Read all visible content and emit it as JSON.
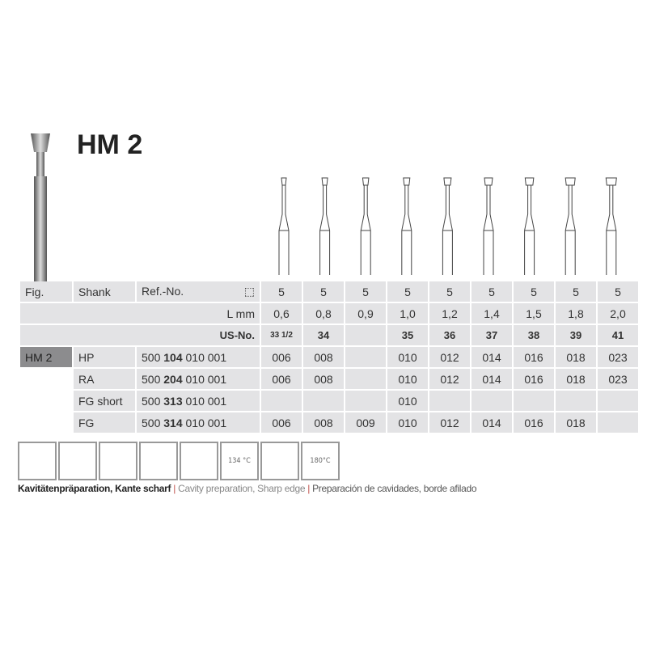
{
  "title": "HM 2",
  "table": {
    "header": {
      "fig": "Fig.",
      "shank": "Shank",
      "ref": "Ref.-No.",
      "pack_icon": "package-box-icon",
      "values": [
        "5",
        "5",
        "5",
        "5",
        "5",
        "5",
        "5",
        "5",
        "5"
      ]
    },
    "lmm": {
      "label": "L mm",
      "values": [
        "0,6",
        "0,8",
        "0,9",
        "1,0",
        "1,2",
        "1,4",
        "1,5",
        "1,8",
        "2,0"
      ]
    },
    "usno": {
      "label": "US-No.",
      "values": [
        "33 1/2",
        "34",
        "",
        "35",
        "36",
        "37",
        "38",
        "39",
        "41"
      ]
    },
    "rows": [
      {
        "fig": "HM 2",
        "shank": "HP",
        "ref_a": "500 ",
        "ref_b": "104",
        "ref_c": " 010 001",
        "values": [
          "006",
          "008",
          "",
          "010",
          "012",
          "014",
          "016",
          "018",
          "023"
        ]
      },
      {
        "fig": "",
        "shank": "RA",
        "ref_a": "500 ",
        "ref_b": "204",
        "ref_c": " 010 001",
        "values": [
          "006",
          "008",
          "",
          "010",
          "012",
          "014",
          "016",
          "018",
          "023"
        ]
      },
      {
        "fig": "",
        "shank": "FG short",
        "ref_a": "500 ",
        "ref_b": "313",
        "ref_c": " 010 001",
        "values": [
          "",
          "",
          "",
          "010",
          "",
          "",
          "",
          "",
          ""
        ]
      },
      {
        "fig": "",
        "shank": "FG",
        "ref_a": "500 ",
        "ref_b": "314",
        "ref_c": " 010 001",
        "values": [
          "006",
          "008",
          "009",
          "010",
          "012",
          "014",
          "016",
          "018",
          ""
        ]
      }
    ]
  },
  "icons": [
    {
      "name": "cavity-icon",
      "label": ""
    },
    {
      "name": "handpiece-icon",
      "label": ""
    },
    {
      "name": "teeth-profile-icon",
      "label": ""
    },
    {
      "name": "dental-arch-icon",
      "label": ""
    },
    {
      "name": "bridge-icon",
      "label": ""
    },
    {
      "name": "sterilizer-134-icon",
      "label": "134 °C"
    },
    {
      "name": "ultrasonic-icon",
      "label": ""
    },
    {
      "name": "hot-air-180-icon",
      "label": "180°C"
    }
  ],
  "caption": {
    "de": "Kavitätenpräparation, Kante scharf",
    "sep": " | ",
    "en": "Cavity preparation, Sharp edge",
    "es": "Preparación de cavidades, borde afilado"
  }
}
